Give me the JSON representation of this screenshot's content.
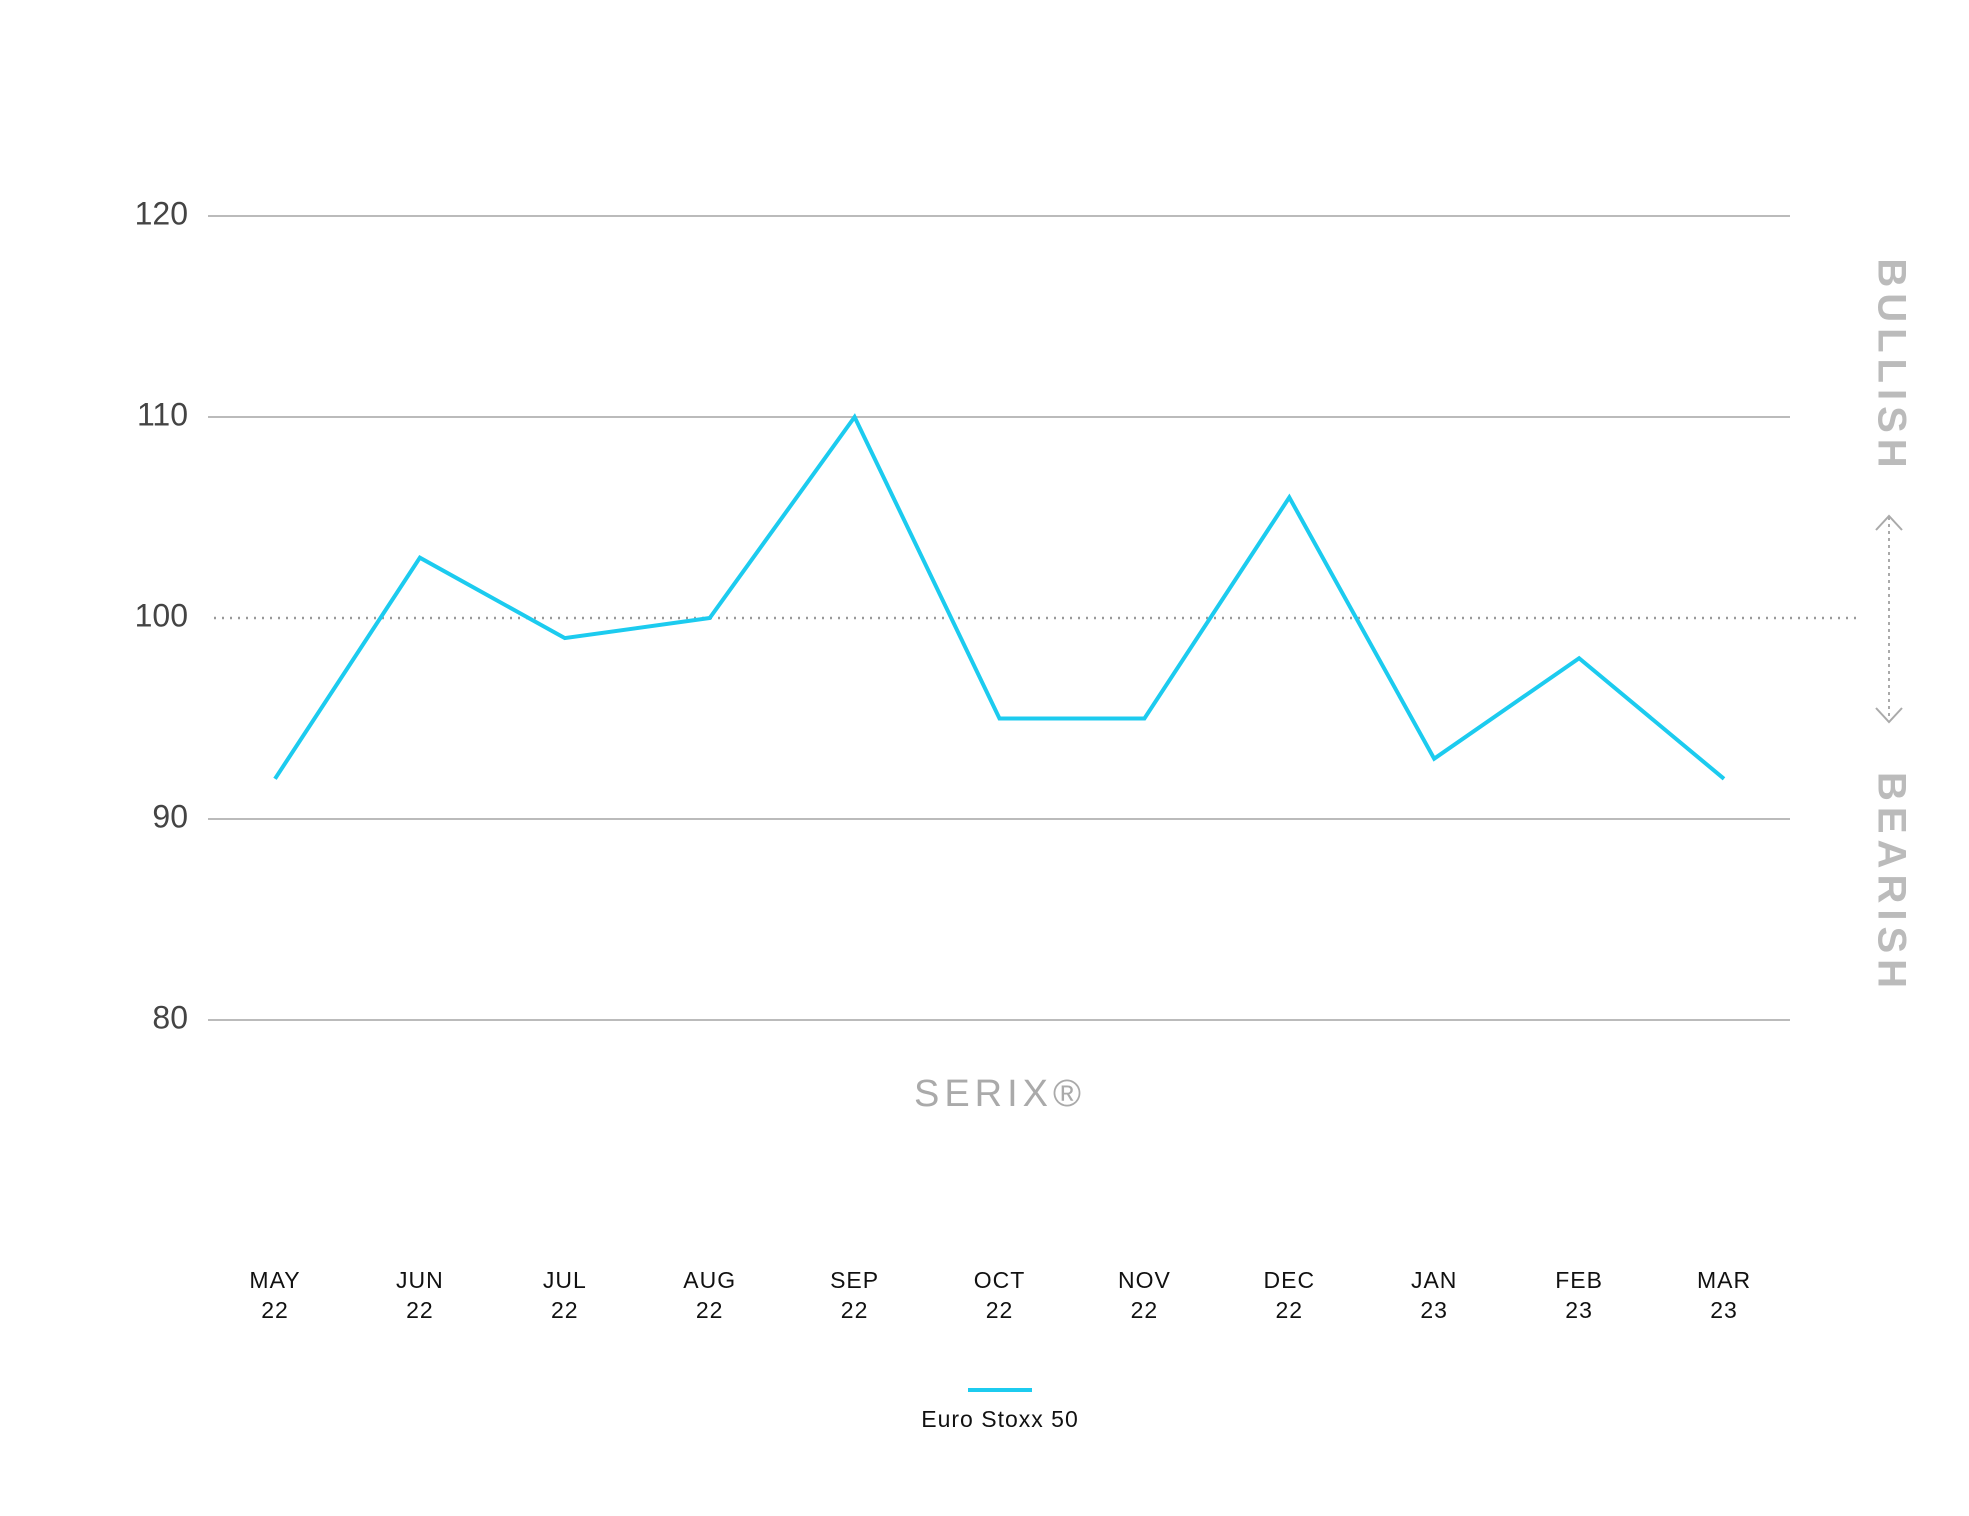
{
  "chart_data": {
    "type": "line",
    "categories": [
      "MAY 22",
      "JUN 22",
      "JUL 22",
      "AUG 22",
      "SEP 22",
      "OCT 22",
      "NOV 22",
      "DEC 22",
      "JAN 23",
      "FEB 23",
      "MAR 23"
    ],
    "series": [
      {
        "name": "Euro Stoxx 50",
        "color": "#1ccbef",
        "values": [
          92,
          103,
          99,
          100,
          110,
          95,
          95,
          106,
          93,
          98,
          92
        ]
      }
    ],
    "ylim": [
      80,
      120
    ],
    "yticks": [
      80,
      90,
      100,
      110,
      120
    ],
    "grid": true,
    "reference_line": 100,
    "annotations": [
      "BULLISH",
      "BEARISH",
      "SERIX®"
    ],
    "legend": "bottom"
  }
}
